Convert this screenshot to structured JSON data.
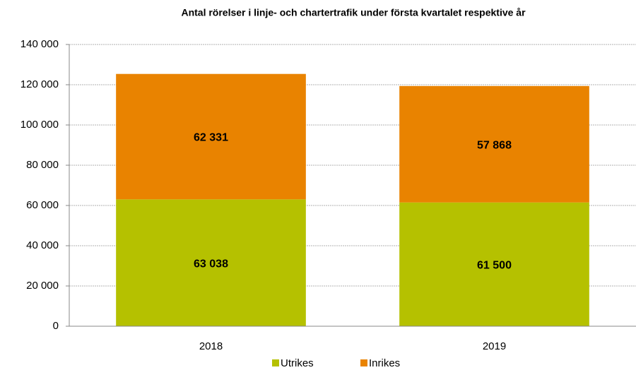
{
  "chart_data": {
    "type": "stacked_bar",
    "title": "Antal rörelser i linje- och chartertrafik under första kvartalet respektive år",
    "categories": [
      "2018",
      "2019"
    ],
    "series": [
      {
        "name": "Utrikes",
        "color": "#b5c100",
        "values": [
          63038,
          61500
        ],
        "value_labels": [
          "63 038",
          "61 500"
        ]
      },
      {
        "name": "Inrikes",
        "color": "#e98300",
        "values": [
          62331,
          57868
        ],
        "value_labels": [
          "62 331",
          "57 868"
        ]
      }
    ],
    "ylim": [
      0,
      140000
    ],
    "yticks": [
      0,
      {
        "value": 20000,
        "label": "20 000"
      },
      {
        "value": 40000,
        "label": "40 000"
      },
      {
        "value": 60000,
        "label": "60 000"
      },
      {
        "value": 80000,
        "label": "80 000"
      },
      {
        "value": 100000,
        "label": "100 000"
      },
      {
        "value": 120000,
        "label": "120 000"
      },
      {
        "value": 140000,
        "label": "140 000"
      }
    ],
    "grid": true,
    "legend": "bottom"
  }
}
